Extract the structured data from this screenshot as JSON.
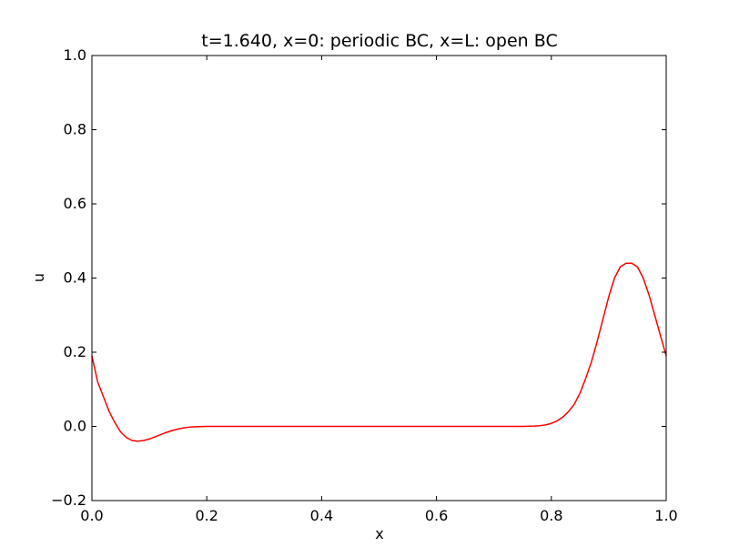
{
  "chart_data": {
    "type": "line",
    "title": "t=1.640, x=0: periodic BC, x=L: open BC",
    "xlabel": "x",
    "ylabel": "u",
    "xlim": [
      0.0,
      1.0
    ],
    "ylim": [
      -0.2,
      1.0
    ],
    "x_ticks": [
      "0.0",
      "0.2",
      "0.4",
      "0.6",
      "0.8",
      "1.0"
    ],
    "y_ticks": [
      "−0.2",
      "0.0",
      "0.2",
      "0.4",
      "0.6",
      "0.8",
      "1.0"
    ],
    "grid": false,
    "series": [
      {
        "color": "#ff0000",
        "x": [
          0.0,
          0.01,
          0.02,
          0.03,
          0.04,
          0.05,
          0.06,
          0.07,
          0.08,
          0.09,
          0.1,
          0.11,
          0.12,
          0.13,
          0.14,
          0.15,
          0.16,
          0.17,
          0.18,
          0.2,
          0.25,
          0.3,
          0.4,
          0.5,
          0.6,
          0.7,
          0.75,
          0.77,
          0.78,
          0.79,
          0.8,
          0.81,
          0.82,
          0.83,
          0.84,
          0.85,
          0.86,
          0.87,
          0.88,
          0.89,
          0.9,
          0.91,
          0.92,
          0.93,
          0.94,
          0.95,
          0.96,
          0.97,
          0.98,
          0.99,
          1.0
        ],
        "y": [
          0.19,
          0.12,
          0.08,
          0.04,
          0.01,
          -0.015,
          -0.03,
          -0.038,
          -0.04,
          -0.038,
          -0.034,
          -0.028,
          -0.022,
          -0.016,
          -0.011,
          -0.007,
          -0.004,
          -0.002,
          -0.001,
          0.0,
          0.0,
          0.0,
          0.0,
          0.0,
          0.0,
          0.0,
          0.0,
          0.001,
          0.002,
          0.004,
          0.008,
          0.015,
          0.025,
          0.04,
          0.06,
          0.09,
          0.13,
          0.175,
          0.23,
          0.29,
          0.35,
          0.4,
          0.43,
          0.44,
          0.44,
          0.43,
          0.4,
          0.355,
          0.3,
          0.245,
          0.19
        ]
      }
    ]
  }
}
